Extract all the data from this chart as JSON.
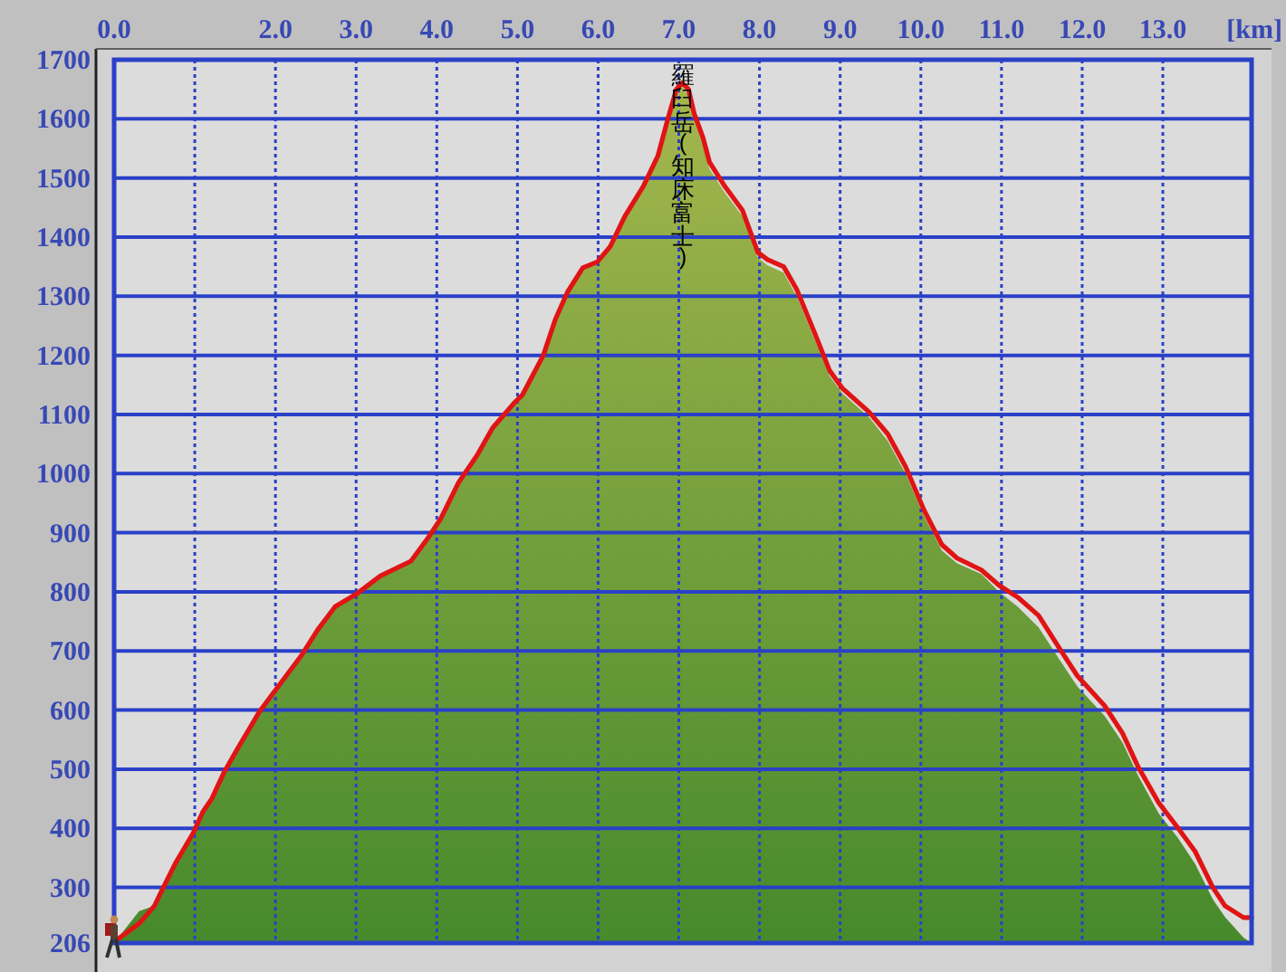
{
  "chart_data": {
    "type": "area",
    "xlabel": "[km]",
    "xlim": [
      0,
      14.1
    ],
    "xticks": [
      {
        "value": 0,
        "label": "0.0"
      },
      {
        "value": 1,
        "label": null
      },
      {
        "value": 2,
        "label": "2.0"
      },
      {
        "value": 3,
        "label": "3.0"
      },
      {
        "value": 4,
        "label": "4.0"
      },
      {
        "value": 5,
        "label": "5.0"
      },
      {
        "value": 6,
        "label": "6.0"
      },
      {
        "value": 7,
        "label": "7.0"
      },
      {
        "value": 8,
        "label": "8.0"
      },
      {
        "value": 9,
        "label": "9.0"
      },
      {
        "value": 10,
        "label": "10.0"
      },
      {
        "value": 11,
        "label": "11.0"
      },
      {
        "value": 12,
        "label": "12.0"
      },
      {
        "value": 13,
        "label": "13.0"
      }
    ],
    "ylim": [
      206,
      1700
    ],
    "yticks": [
      206,
      300,
      400,
      500,
      600,
      700,
      800,
      900,
      1000,
      1100,
      1200,
      1300,
      1400,
      1500,
      1600,
      1700
    ],
    "grid": true,
    "series": [
      {
        "type": "area",
        "color": "#779f3d",
        "x": [
          0.0,
          0.31,
          0.5,
          0.61,
          0.76,
          0.98,
          1.1,
          1.21,
          1.36,
          1.51,
          1.8,
          1.99,
          2.33,
          2.52,
          2.74,
          3.0,
          3.3,
          3.68,
          3.9,
          4.05,
          4.27,
          4.5,
          4.69,
          4.95,
          5.06,
          5.32,
          5.47,
          5.62,
          5.81,
          5.99,
          6.15,
          6.33,
          6.56,
          6.74,
          6.86,
          6.97,
          7.04,
          7.12,
          7.19,
          7.3,
          7.38,
          7.57,
          7.79,
          7.98,
          8.1,
          8.3,
          8.46,
          8.69,
          8.87,
          9.03,
          9.36,
          9.59,
          9.81,
          10.04,
          10.26,
          10.45,
          10.75,
          10.97,
          11.2,
          11.46,
          11.72,
          11.94,
          12.28,
          12.5,
          12.69,
          12.95,
          13.18,
          13.4,
          13.62,
          13.77,
          14.0,
          14.1
        ],
        "values": [
          206,
          260,
          269,
          300,
          341,
          392,
          428,
          450,
          494,
          530,
          597,
          632,
          694,
          735,
          775,
          796,
          827,
          852,
          893,
          924,
          985,
          1031,
          1077,
          1118,
          1133,
          1200,
          1261,
          1307,
          1348,
          1358,
          1384,
          1435,
          1486,
          1537,
          1598,
          1645,
          1655,
          1640,
          1600,
          1555,
          1515,
          1475,
          1435,
          1365,
          1352,
          1340,
          1300,
          1225,
          1165,
          1135,
          1095,
          1055,
          1000,
          928,
          870,
          848,
          830,
          800,
          775,
          740,
          685,
          640,
          590,
          545,
          490,
          425,
          385,
          340,
          280,
          250,
          215,
          206
        ]
      },
      {
        "type": "line",
        "color": "#e01414",
        "x": [
          0.02,
          0.31,
          0.5,
          0.61,
          0.76,
          0.98,
          1.1,
          1.21,
          1.36,
          1.51,
          1.8,
          1.99,
          2.33,
          2.52,
          2.74,
          3.0,
          3.3,
          3.68,
          3.9,
          4.05,
          4.27,
          4.5,
          4.69,
          4.95,
          5.06,
          5.32,
          5.47,
          5.62,
          5.81,
          5.99,
          6.15,
          6.33,
          6.56,
          6.74,
          6.86,
          6.97,
          7.04,
          7.12,
          7.19,
          7.3,
          7.38,
          7.57,
          7.79,
          7.98,
          8.1,
          8.3,
          8.46,
          8.69,
          8.87,
          9.03,
          9.36,
          9.59,
          9.81,
          10.04,
          10.26,
          10.45,
          10.75,
          10.97,
          11.2,
          11.46,
          11.72,
          11.94,
          12.28,
          12.5,
          12.69,
          12.95,
          13.18,
          13.4,
          13.62,
          13.77,
          14.0,
          14.1
        ],
        "values": [
          210,
          239,
          269,
          300,
          341,
          392,
          428,
          450,
          494,
          530,
          597,
          632,
          694,
          735,
          775,
          796,
          827,
          852,
          893,
          924,
          985,
          1031,
          1077,
          1118,
          1133,
          1200,
          1261,
          1307,
          1348,
          1358,
          1384,
          1435,
          1486,
          1537,
          1598,
          1650,
          1661,
          1650,
          1609,
          1568,
          1527,
          1486,
          1445,
          1374,
          1362,
          1350,
          1312,
          1236,
          1174,
          1144,
          1104,
          1067,
          1012,
          938,
          880,
          857,
          837,
          811,
          791,
          760,
          704,
          658,
          607,
          561,
          505,
          443,
          402,
          361,
          300,
          269,
          249,
          249
        ]
      }
    ],
    "annotations": [
      "羅臼岳(知床富士)"
    ]
  }
}
